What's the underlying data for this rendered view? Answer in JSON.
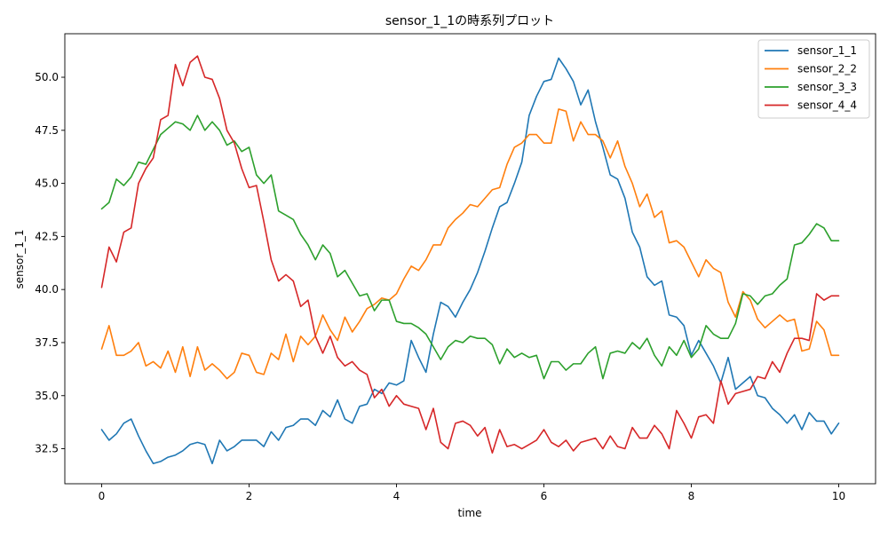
{
  "chart_data": {
    "type": "line",
    "title": "sensor_1_1の時系列プロット",
    "xlabel": "time",
    "ylabel": "sensor_1_1",
    "xlim": [
      -0.5,
      10.5
    ],
    "ylim": [
      30.85,
      52.05
    ],
    "xticks": [
      0,
      2,
      4,
      6,
      8,
      10
    ],
    "xtick_labels": [
      "0",
      "2",
      "4",
      "6",
      "8",
      "10"
    ],
    "yticks": [
      32.5,
      35.0,
      37.5,
      40.0,
      42.5,
      45.0,
      47.5,
      50.0
    ],
    "ytick_labels": [
      "32.5",
      "35.0",
      "37.5",
      "40.0",
      "42.5",
      "45.0",
      "47.5",
      "50.0"
    ],
    "grid": false,
    "legend_position": "top-right",
    "x": [
      0.0,
      0.1,
      0.2,
      0.3,
      0.4,
      0.5,
      0.6,
      0.7,
      0.8,
      0.9,
      1.0,
      1.1,
      1.2,
      1.3,
      1.4,
      1.5,
      1.6,
      1.7,
      1.8,
      1.9,
      2.0,
      2.1,
      2.2,
      2.3,
      2.4,
      2.5,
      2.6,
      2.7,
      2.8,
      2.9,
      3.0,
      3.1,
      3.2,
      3.3,
      3.4,
      3.5,
      3.6,
      3.7,
      3.8,
      3.9,
      4.0,
      4.1,
      4.2,
      4.3,
      4.4,
      4.5,
      4.6,
      4.7,
      4.8,
      4.9,
      5.0,
      5.1,
      5.2,
      5.3,
      5.4,
      5.5,
      5.6,
      5.7,
      5.8,
      5.9,
      6.0,
      6.1,
      6.2,
      6.3,
      6.4,
      6.5,
      6.6,
      6.7,
      6.8,
      6.9,
      7.0,
      7.1,
      7.2,
      7.3,
      7.4,
      7.5,
      7.6,
      7.7,
      7.8,
      7.9,
      8.0,
      8.1,
      8.2,
      8.3,
      8.4,
      8.5,
      8.6,
      8.7,
      8.8,
      8.9,
      9.0,
      9.1,
      9.2,
      9.3,
      9.4,
      9.5,
      9.6,
      9.7,
      9.8,
      9.9,
      10.0
    ],
    "series": [
      {
        "name": "sensor_1_1",
        "color": "#1f77b4",
        "values": [
          33.4,
          32.9,
          33.2,
          33.7,
          33.9,
          33.1,
          32.4,
          31.8,
          31.9,
          32.1,
          32.2,
          32.4,
          32.7,
          32.8,
          32.7,
          31.8,
          32.9,
          32.4,
          32.6,
          32.9,
          32.9,
          32.9,
          32.6,
          33.3,
          32.9,
          33.5,
          33.6,
          33.9,
          33.9,
          33.6,
          34.3,
          34.0,
          34.8,
          33.9,
          33.7,
          34.5,
          34.6,
          35.3,
          35.1,
          35.6,
          35.5,
          35.7,
          37.6,
          36.8,
          36.1,
          37.9,
          39.4,
          39.2,
          38.7,
          39.4,
          40.0,
          40.8,
          41.8,
          42.9,
          43.9,
          44.1,
          45.0,
          46.0,
          48.2,
          49.1,
          49.8,
          49.9,
          50.9,
          50.4,
          49.8,
          48.7,
          49.4,
          47.9,
          46.7,
          45.4,
          45.2,
          44.3,
          42.7,
          42.0,
          40.6,
          40.2,
          40.4,
          38.8,
          38.7,
          38.3,
          36.9,
          37.6,
          37.0,
          36.4,
          35.6,
          36.8,
          35.3,
          35.6,
          35.9,
          35.0,
          34.9,
          34.4,
          34.1,
          33.7,
          34.1,
          33.4,
          34.2,
          33.8,
          33.8,
          33.2,
          33.7
        ]
      },
      {
        "name": "sensor_2_2",
        "color": "#ff7f0e",
        "values": [
          37.2,
          38.3,
          36.9,
          36.9,
          37.1,
          37.5,
          36.4,
          36.6,
          36.3,
          37.1,
          36.1,
          37.3,
          35.9,
          37.3,
          36.2,
          36.5,
          36.2,
          35.8,
          36.1,
          37.0,
          36.9,
          36.1,
          36.0,
          37.0,
          36.7,
          37.9,
          36.6,
          37.8,
          37.4,
          37.8,
          38.8,
          38.1,
          37.6,
          38.7,
          38.0,
          38.5,
          39.1,
          39.3,
          39.6,
          39.5,
          39.8,
          40.5,
          41.1,
          40.9,
          41.4,
          42.1,
          42.1,
          42.9,
          43.3,
          43.6,
          44.0,
          43.9,
          44.3,
          44.7,
          44.8,
          45.9,
          46.7,
          46.9,
          47.3,
          47.3,
          46.9,
          46.9,
          48.5,
          48.4,
          47.0,
          47.9,
          47.3,
          47.3,
          47.0,
          46.2,
          47.0,
          45.8,
          45.0,
          43.9,
          44.5,
          43.4,
          43.7,
          42.2,
          42.3,
          42.0,
          41.3,
          40.6,
          41.4,
          41.0,
          40.8,
          39.4,
          38.7,
          39.9,
          39.5,
          38.6,
          38.2,
          38.5,
          38.8,
          38.5,
          38.6,
          37.1,
          37.2,
          38.5,
          38.1,
          36.9,
          36.9
        ]
      },
      {
        "name": "sensor_3_3",
        "color": "#2ca02c",
        "values": [
          43.8,
          44.1,
          45.2,
          44.9,
          45.3,
          46.0,
          45.9,
          46.6,
          47.3,
          47.6,
          47.9,
          47.8,
          47.5,
          48.2,
          47.5,
          47.9,
          47.5,
          46.8,
          47.0,
          46.5,
          46.7,
          45.4,
          45.0,
          45.4,
          43.7,
          43.5,
          43.3,
          42.6,
          42.1,
          41.4,
          42.1,
          41.7,
          40.6,
          40.9,
          40.3,
          39.7,
          39.8,
          39.0,
          39.5,
          39.5,
          38.5,
          38.4,
          38.4,
          38.2,
          37.9,
          37.3,
          36.7,
          37.3,
          37.6,
          37.5,
          37.8,
          37.7,
          37.7,
          37.4,
          36.5,
          37.2,
          36.8,
          37.0,
          36.8,
          36.9,
          35.8,
          36.6,
          36.6,
          36.2,
          36.5,
          36.5,
          37.0,
          37.3,
          35.8,
          37.0,
          37.1,
          37.0,
          37.5,
          37.2,
          37.7,
          36.9,
          36.4,
          37.3,
          36.9,
          37.6,
          36.8,
          37.2,
          38.3,
          37.9,
          37.7,
          37.7,
          38.4,
          39.8,
          39.7,
          39.3,
          39.7,
          39.8,
          40.2,
          40.5,
          42.1,
          42.2,
          42.6,
          43.1,
          42.9,
          42.3,
          42.3
        ]
      },
      {
        "name": "sensor_4_4",
        "color": "#d62728",
        "values": [
          40.1,
          42.0,
          41.3,
          42.7,
          42.9,
          45.0,
          45.7,
          46.2,
          48.0,
          48.2,
          50.6,
          49.6,
          50.7,
          51.0,
          50.0,
          49.9,
          49.0,
          47.5,
          46.9,
          45.7,
          44.8,
          44.9,
          43.2,
          41.4,
          40.4,
          40.7,
          40.4,
          39.2,
          39.5,
          37.8,
          37.0,
          37.8,
          36.8,
          36.4,
          36.6,
          36.2,
          36.0,
          34.9,
          35.3,
          34.5,
          35.0,
          34.6,
          34.5,
          34.4,
          33.4,
          34.4,
          32.8,
          32.5,
          33.7,
          33.8,
          33.6,
          33.1,
          33.5,
          32.3,
          33.4,
          32.6,
          32.7,
          32.5,
          32.7,
          32.9,
          33.4,
          32.8,
          32.6,
          32.9,
          32.4,
          32.8,
          32.9,
          33.0,
          32.5,
          33.1,
          32.6,
          32.5,
          33.5,
          33.0,
          33.0,
          33.6,
          33.2,
          32.5,
          34.3,
          33.7,
          33.0,
          34.0,
          34.1,
          33.7,
          35.7,
          34.6,
          35.1,
          35.2,
          35.3,
          35.9,
          35.8,
          36.6,
          36.1,
          37.0,
          37.7,
          37.7,
          37.6,
          39.8,
          39.5,
          39.7,
          39.7
        ]
      }
    ]
  }
}
